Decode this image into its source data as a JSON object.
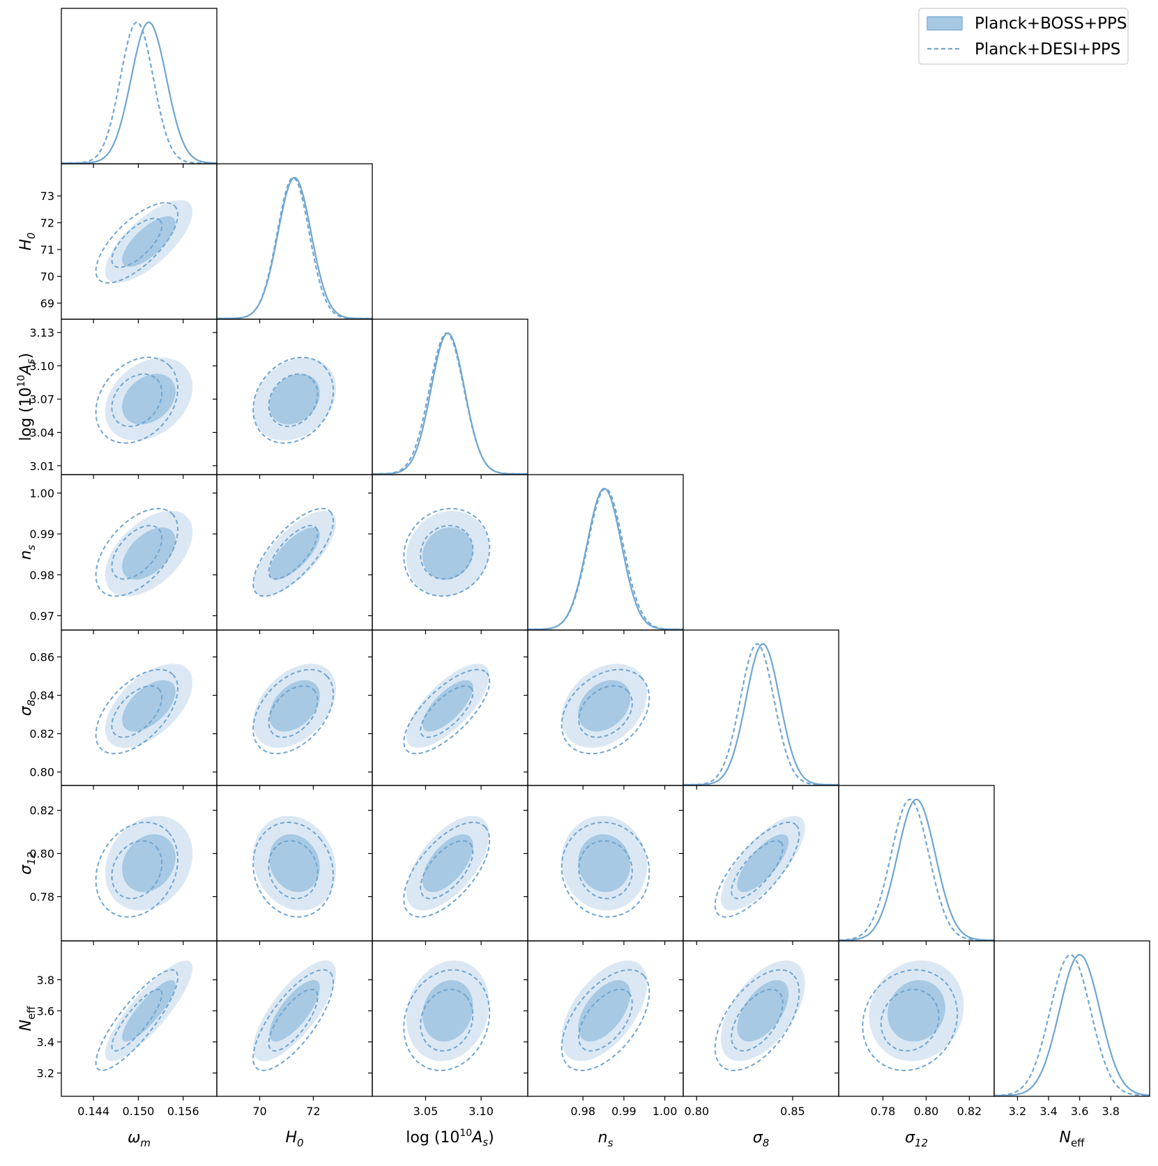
{
  "chart_data": {
    "type": "triangle",
    "title": "",
    "colors": {
      "line": "#6fa5d1",
      "fill_inner": "#a7c9e3",
      "fill_outer": "#dbe8f4"
    },
    "legend": [
      {
        "label": "Planck+BOSS+PPS",
        "style": "filled"
      },
      {
        "label": "Planck+DESI+PPS",
        "style": "dashed"
      }
    ],
    "params": [
      {
        "name": "omega_m",
        "label_base": "ω",
        "label_sub": "m",
        "range": [
          0.1397,
          0.1605
        ],
        "ticks": [
          0.144,
          0.15,
          0.156
        ],
        "tick_labels": [
          "0.144",
          "0.150",
          "0.156"
        ],
        "solid": {
          "mean": 0.1514,
          "sigma": 0.00235
        },
        "dashed": {
          "mean": 0.1498,
          "sigma": 0.0022
        }
      },
      {
        "name": "H0",
        "label_base": "H",
        "label_sub": "0",
        "range": [
          68.4,
          74.2
        ],
        "ticks": [
          69,
          70,
          71,
          72,
          73
        ],
        "tick_labels": [
          "69",
          "70",
          "71",
          "72",
          "73"
        ],
        "tick_labels_x": [
          "70",
          "72"
        ],
        "ticks_x": [
          70,
          72
        ],
        "solid": {
          "mean": 71.3,
          "sigma": 0.62
        },
        "dashed": {
          "mean": 71.25,
          "sigma": 0.6
        }
      },
      {
        "name": "logAs",
        "label_base": "log (10",
        "label_sup": "10",
        "label_mid": "A",
        "label_sub": "s",
        "label_end": ")",
        "range": [
          3.002,
          3.142
        ],
        "ticks": [
          3.01,
          3.04,
          3.07,
          3.1,
          3.13
        ],
        "tick_labels": [
          "3.01",
          "3.04",
          "3.07",
          "3.10",
          "3.13"
        ],
        "ticks_x": [
          3.05,
          3.1
        ],
        "tick_labels_x": [
          "3.05",
          "3.10"
        ],
        "solid": {
          "mean": 3.07,
          "sigma": 0.015
        },
        "dashed": {
          "mean": 3.069,
          "sigma": 0.0155
        }
      },
      {
        "name": "ns",
        "label_base": "n",
        "label_sub": "s",
        "range": [
          0.9665,
          1.0045
        ],
        "ticks": [
          0.97,
          0.98,
          0.99,
          1.0
        ],
        "tick_labels": [
          "0.97",
          "0.98",
          "0.99",
          "1.00"
        ],
        "ticks_x": [
          0.98,
          0.99,
          1.0
        ],
        "tick_labels_x": [
          "0.98",
          "0.99",
          "1.00"
        ],
        "solid": {
          "mean": 0.9852,
          "sigma": 0.0042
        },
        "dashed": {
          "mean": 0.9855,
          "sigma": 0.0043
        }
      },
      {
        "name": "sigma8",
        "label_base": "σ",
        "label_sub": "8",
        "range": [
          0.793,
          0.874
        ],
        "ticks": [
          0.8,
          0.82,
          0.84,
          0.86
        ],
        "tick_labels": [
          "0.80",
          "0.82",
          "0.84",
          "0.86"
        ],
        "ticks_x": [
          0.8,
          0.85
        ],
        "tick_labels_x": [
          "0.80",
          "0.85"
        ],
        "solid": {
          "mean": 0.8345,
          "sigma": 0.0088
        },
        "dashed": {
          "mean": 0.8315,
          "sigma": 0.0088
        }
      },
      {
        "name": "sigma12",
        "label_base": "σ",
        "label_sub": "12",
        "range": [
          0.7595,
          0.8315
        ],
        "ticks": [
          0.78,
          0.8,
          0.82
        ],
        "tick_labels": [
          "0.78",
          "0.80",
          "0.82"
        ],
        "solid": {
          "mean": 0.7955,
          "sigma": 0.0088
        },
        "dashed": {
          "mean": 0.7925,
          "sigma": 0.0088
        }
      },
      {
        "name": "Neff",
        "label_base": "N",
        "label_sub": "eff",
        "range": [
          3.05,
          4.05
        ],
        "ticks": [
          3.2,
          3.4,
          3.6,
          3.8
        ],
        "tick_labels": [
          "3.2",
          "3.4",
          "3.6",
          "3.8"
        ],
        "solid": {
          "mean": 3.6,
          "sigma": 0.13
        },
        "dashed": {
          "mean": 3.54,
          "sigma": 0.13
        }
      }
    ],
    "correlations_solid": [
      [
        1,
        0.72,
        0.3,
        0.5,
        0.55,
        0.2,
        0.85
      ],
      [
        0.72,
        1,
        0.25,
        0.72,
        0.4,
        -0.15,
        0.75
      ],
      [
        0.3,
        0.25,
        1,
        0.1,
        0.72,
        0.6,
        0.15
      ],
      [
        0.5,
        0.72,
        0.1,
        1,
        0.3,
        -0.05,
        0.55
      ],
      [
        0.55,
        0.4,
        0.72,
        0.3,
        1,
        0.75,
        0.55
      ],
      [
        0.2,
        -0.15,
        0.6,
        -0.05,
        0.75,
        1,
        0.1
      ],
      [
        0.85,
        0.75,
        0.15,
        0.55,
        0.55,
        0.1,
        1
      ]
    ],
    "correlations_dashed": [
      [
        1,
        0.7,
        0.28,
        0.52,
        0.55,
        0.22,
        0.85
      ],
      [
        0.7,
        1,
        0.22,
        0.72,
        0.42,
        -0.12,
        0.75
      ],
      [
        0.28,
        0.22,
        1,
        0.1,
        0.72,
        0.62,
        0.15
      ],
      [
        0.52,
        0.72,
        0.1,
        1,
        0.32,
        -0.05,
        0.55
      ],
      [
        0.55,
        0.42,
        0.72,
        0.32,
        1,
        0.75,
        0.55
      ],
      [
        0.22,
        -0.12,
        0.62,
        -0.05,
        0.75,
        1,
        0.12
      ],
      [
        0.85,
        0.75,
        0.15,
        0.55,
        0.55,
        0.12,
        1
      ]
    ]
  }
}
